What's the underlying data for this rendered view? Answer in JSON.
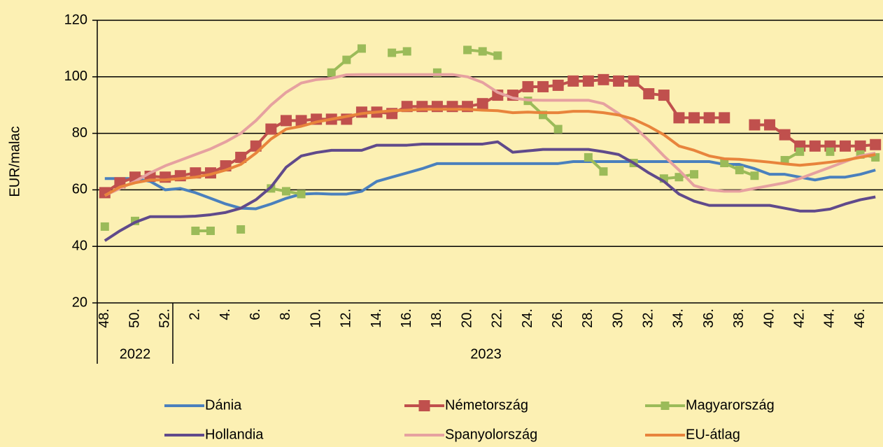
{
  "chart_data": {
    "type": "line",
    "y_label": "EUR/malac",
    "categories": [
      "48.",
      null,
      "50.",
      null,
      "52.",
      null,
      "2.",
      null,
      "4.",
      null,
      "6.",
      null,
      "8.",
      null,
      "10.",
      null,
      "12.",
      null,
      "14.",
      null,
      "16.",
      null,
      "18.",
      null,
      "20.",
      null,
      "22.",
      null,
      "24.",
      null,
      "26.",
      null,
      "28.",
      null,
      "30.",
      null,
      "32.",
      null,
      "34.",
      null,
      "36.",
      null,
      "38.",
      null,
      "40.",
      null,
      "42.",
      null,
      "44.",
      null,
      "46.",
      null
    ],
    "x_groups": [
      "2022",
      "2023"
    ],
    "ylim": [
      20,
      120
    ],
    "yticks": [
      20,
      40,
      60,
      80,
      100,
      120
    ],
    "grid": true,
    "legend": "bottom",
    "series": [
      {
        "name": "Dánia",
        "color": "#4a80bd",
        "marker": null,
        "values": [
          64,
          64,
          64,
          63,
          60,
          60.5,
          59,
          57,
          55,
          53.5,
          53.3,
          55,
          57,
          58.5,
          58.7,
          58.5,
          58.5,
          59.5,
          63,
          64.5,
          66,
          67.5,
          69.3,
          69.3,
          69.3,
          69.3,
          69.3,
          69.3,
          69.3,
          69.3,
          69.3,
          70,
          70,
          70,
          70,
          70,
          70,
          70,
          70,
          70,
          70,
          69,
          69,
          67.5,
          65.5,
          65.5,
          64.5,
          63.5,
          64.5,
          64.5,
          65.5,
          67
        ]
      },
      {
        "name": "Németország",
        "color": "#c0504d",
        "marker": "square",
        "values": [
          59,
          62.5,
          64.5,
          64.8,
          64.5,
          65,
          66,
          66,
          68.5,
          71.5,
          75.5,
          81.5,
          84.5,
          84.5,
          85,
          85,
          85,
          87.5,
          87.5,
          87,
          89.5,
          89.5,
          89.5,
          89.5,
          89.5,
          90.5,
          93.5,
          93.5,
          96.5,
          96.5,
          97,
          98.5,
          98.5,
          99,
          98.5,
          98.5,
          94,
          93.5,
          85.5,
          85.5,
          85.5,
          85.5,
          null,
          83,
          83,
          79.5,
          75.5,
          75.5,
          75.5,
          75.5,
          75.5,
          76
        ]
      },
      {
        "name": "Magyarország",
        "color": "#9bbb59",
        "marker": "square",
        "values": [
          47,
          null,
          49,
          null,
          null,
          null,
          45.5,
          45.5,
          null,
          46,
          null,
          60.5,
          59.5,
          58.5,
          null,
          101.5,
          106,
          110,
          null,
          108.5,
          109,
          null,
          101.5,
          null,
          109.5,
          109,
          107.5,
          null,
          91.5,
          86.5,
          81.5,
          null,
          71.5,
          66.5,
          null,
          69.5,
          null,
          64,
          64.5,
          65.5,
          null,
          69.5,
          67,
          65,
          null,
          70.5,
          73.5,
          null,
          73.5,
          null,
          72.5,
          71.5
        ]
      },
      {
        "name": "Hollandia",
        "color": "#604a8b",
        "marker": null,
        "values": [
          42,
          45.5,
          48.5,
          50.5,
          50.5,
          50.5,
          50.7,
          51.2,
          52,
          53.5,
          56.5,
          61,
          68,
          72,
          73.2,
          74,
          74,
          74,
          75.8,
          75.8,
          75.8,
          76.2,
          76.2,
          76.2,
          76.2,
          76.2,
          77,
          73.3,
          73.8,
          74.3,
          74.3,
          74.3,
          74.3,
          73.5,
          72.5,
          69.5,
          66,
          63,
          58.5,
          56,
          54.5,
          54.5,
          54.5,
          54.5,
          54.5,
          53.5,
          52.5,
          52.5,
          53.2,
          55,
          56.5,
          57.5
        ]
      },
      {
        "name": "Spanyolország",
        "color": "#e6a1a0",
        "marker": null,
        "values": [
          58,
          60.5,
          63,
          66,
          68.5,
          70.5,
          72.5,
          74.5,
          77,
          80,
          84.5,
          90,
          94.5,
          97.8,
          99,
          99.5,
          100.7,
          100.8,
          100.8,
          100.8,
          100.8,
          100.8,
          100.8,
          100.8,
          100,
          98,
          94.5,
          92.5,
          91.8,
          91.7,
          91.7,
          91.7,
          91.7,
          90.5,
          87,
          82.5,
          77.5,
          72,
          67,
          61.5,
          60,
          59.5,
          59.5,
          60.5,
          61.5,
          62.5,
          64,
          66,
          68,
          70,
          72,
          73
        ]
      },
      {
        "name": "EU-átlag",
        "color": "#e8843c",
        "marker": null,
        "values": [
          58,
          61,
          62.5,
          63.5,
          63.5,
          64,
          64.5,
          65.5,
          67,
          69,
          73,
          78,
          81.5,
          82.5,
          84,
          85,
          86,
          87,
          87.5,
          88,
          88.2,
          88.5,
          88.5,
          88.5,
          88.5,
          88.2,
          88,
          87.3,
          87.5,
          87.3,
          87.3,
          87.8,
          87.8,
          87.3,
          86.5,
          85,
          82.5,
          79.5,
          75.5,
          74,
          72,
          71,
          70.8,
          70.3,
          69.8,
          69.2,
          68.7,
          69.2,
          69.8,
          70.5,
          71.5,
          72.5
        ]
      }
    ]
  }
}
